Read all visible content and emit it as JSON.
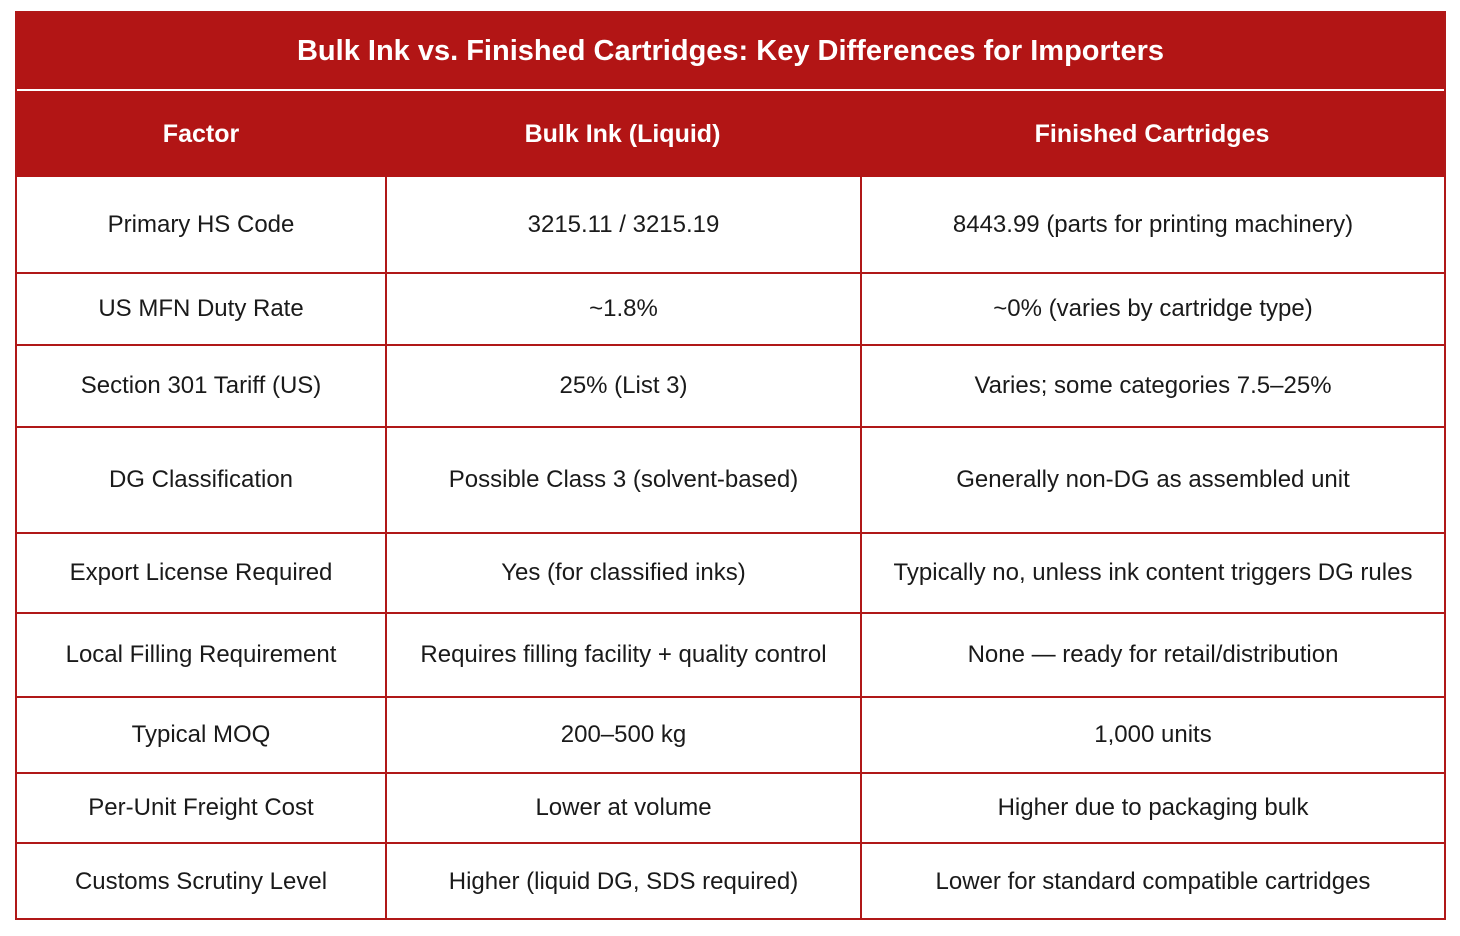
{
  "table": {
    "title": "Bulk Ink vs. Finished Cartridges: Key Differences for Importers",
    "columns": [
      "Factor",
      "Bulk Ink (Liquid)",
      "Finished Cartridges"
    ],
    "rows": [
      [
        "Primary HS Code",
        "3215.11 / 3215.19",
        "8443.99 (parts for printing machinery)"
      ],
      [
        "US MFN Duty Rate",
        "~1.8%",
        "~0% (varies by cartridge type)"
      ],
      [
        "Section 301 Tariff (US)",
        "25% (List 3)",
        "Varies; some categories 7.5–25%"
      ],
      [
        "DG Classification",
        "Possible Class 3 (solvent-based)",
        "Generally non-DG as assembled unit"
      ],
      [
        "Export License Required",
        "Yes (for classified inks)",
        "Typically no, unless ink content triggers DG rules"
      ],
      [
        "Local Filling Requirement",
        "Requires filling facility + quality control",
        "None — ready for retail/distribution"
      ],
      [
        "Typical MOQ",
        "200–500 kg",
        "1,000 units"
      ],
      [
        "Per-Unit Freight Cost",
        "Lower at volume",
        "Higher due to packaging bulk"
      ],
      [
        "Customs Scrutiny Level",
        "Higher (liquid DG, SDS required)",
        "Lower for standard compatible cartridges"
      ]
    ]
  },
  "colors": {
    "header_bg": "#b21515",
    "border": "#b01818",
    "header_text": "#ffffff",
    "body_text": "#1a1a1a"
  }
}
